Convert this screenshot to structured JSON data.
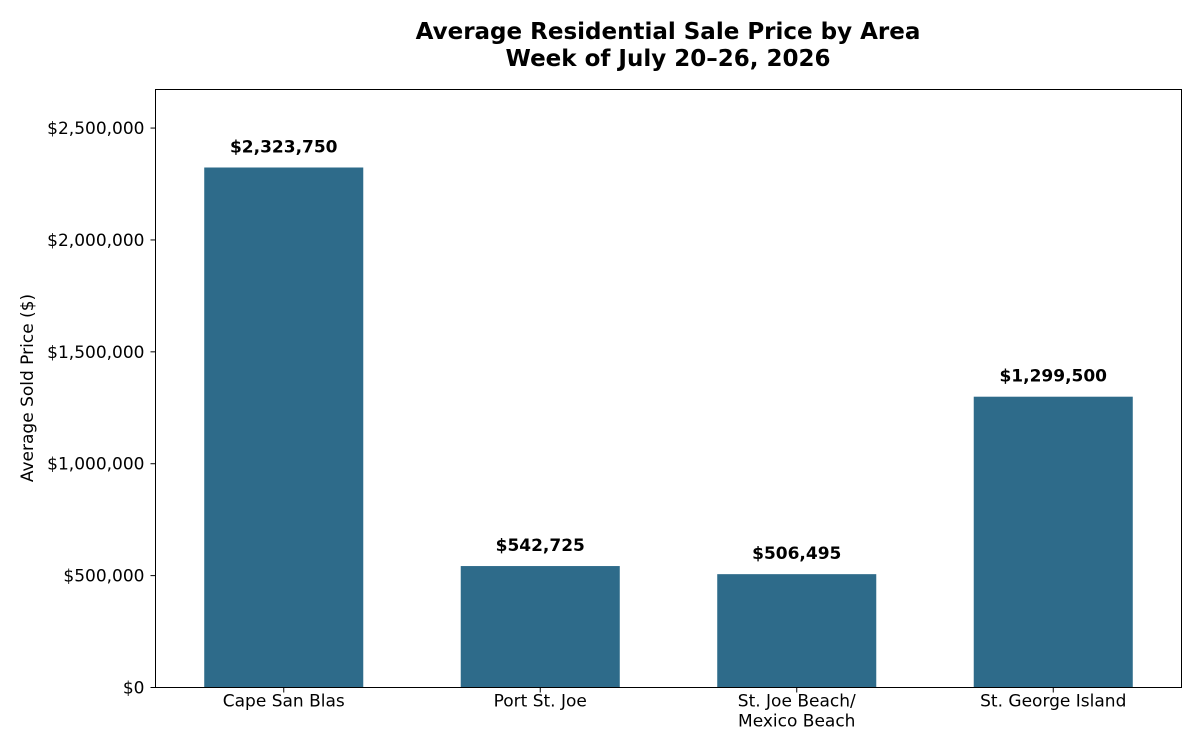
{
  "chart_data": {
    "type": "bar",
    "title": "Average Residential Sale Price by Area",
    "subtitle": "Week of July 20–26, 2026",
    "xlabel": "",
    "ylabel": "Average Sold Price ($)",
    "categories": [
      [
        "Cape San Blas"
      ],
      [
        "Port St. Joe"
      ],
      [
        "St. Joe Beach/",
        "Mexico Beach"
      ],
      [
        "St. George Island"
      ]
    ],
    "values": [
      2323750,
      542725,
      506495,
      1299500
    ],
    "value_labels": [
      "$2,323,750",
      "$542,725",
      "$506,495",
      "$1,299,500"
    ],
    "yticks": [
      0,
      500000,
      1000000,
      1500000,
      2000000,
      2500000
    ],
    "ytick_labels": [
      "$0",
      "$500,000",
      "$1,000,000",
      "$1,500,000",
      "$2,000,000",
      "$2,500,000"
    ],
    "ylim": [
      0,
      2672312
    ],
    "grid": false,
    "bar_color": "#2e6b8a",
    "label_color": "#000000"
  }
}
